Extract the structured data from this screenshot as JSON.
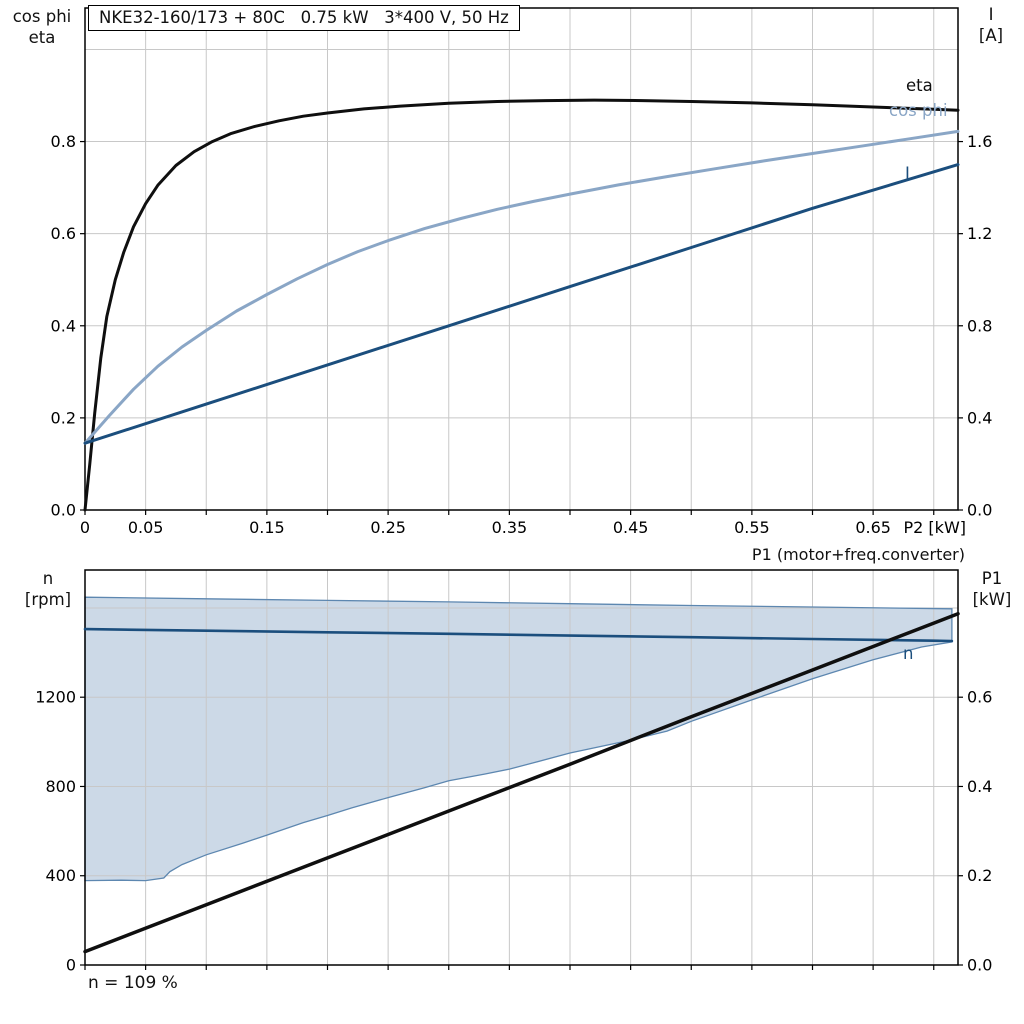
{
  "colors": {
    "black_curve": "#0f0f0f",
    "cos_phi": "#8aa6c6",
    "dark_blue": "#1b4e7d",
    "band_fill": "#ccd9e7",
    "band_edge": "#5d87b0",
    "grid": "#c8c8c8",
    "axis": "#000000"
  },
  "chart_data": [
    {
      "id": "top",
      "type": "line",
      "title": "NKE32-160/173 + 80C   0.75 kW   3*400 V, 50 Hz",
      "x_axis": {
        "label": "P2 [kW]",
        "min": 0,
        "max": 0.72,
        "grid_step": 0.05,
        "tick_values": [
          0,
          0.05,
          0.15,
          0.25,
          0.35,
          0.45,
          0.55,
          0.65
        ],
        "tick_labels": [
          "0",
          "0.05",
          "0.15",
          "0.25",
          "0.35",
          "0.45",
          "0.55",
          "0.65"
        ]
      },
      "y_left": {
        "title_line1": "cos phi",
        "title_line2": "eta",
        "min": 0,
        "max": 1.09,
        "ticks": [
          0,
          0.2,
          0.4,
          0.6,
          0.8
        ],
        "tick_labels": [
          "0.0",
          "0.2",
          "0.4",
          "0.6",
          "0.8"
        ],
        "grid": [
          0.2,
          0.4,
          0.6,
          0.8,
          1.0
        ]
      },
      "y_right": {
        "title_line1": "I",
        "title_line2": "[A]",
        "min": 0,
        "max": 2.18,
        "ticks": [
          0,
          0.4,
          0.8,
          1.2,
          1.6
        ],
        "tick_labels": [
          "0.0",
          "0.4",
          "0.8",
          "1.2",
          "1.6"
        ]
      },
      "series": [
        {
          "name": "eta",
          "label": "eta",
          "axis": "left",
          "color": "#0f0f0f",
          "points": [
            [
              0,
              0
            ],
            [
              0.004,
              0.1
            ],
            [
              0.008,
              0.21
            ],
            [
              0.013,
              0.33
            ],
            [
              0.018,
              0.42
            ],
            [
              0.025,
              0.5
            ],
            [
              0.032,
              0.56
            ],
            [
              0.04,
              0.615
            ],
            [
              0.05,
              0.665
            ],
            [
              0.06,
              0.705
            ],
            [
              0.075,
              0.748
            ],
            [
              0.09,
              0.778
            ],
            [
              0.105,
              0.8
            ],
            [
              0.12,
              0.817
            ],
            [
              0.14,
              0.833
            ],
            [
              0.16,
              0.845
            ],
            [
              0.18,
              0.855
            ],
            [
              0.2,
              0.862
            ],
            [
              0.23,
              0.871
            ],
            [
              0.26,
              0.877
            ],
            [
              0.3,
              0.883
            ],
            [
              0.34,
              0.887
            ],
            [
              0.38,
              0.889
            ],
            [
              0.42,
              0.89
            ],
            [
              0.46,
              0.889
            ],
            [
              0.5,
              0.887
            ],
            [
              0.55,
              0.884
            ],
            [
              0.6,
              0.88
            ],
            [
              0.65,
              0.875
            ],
            [
              0.7,
              0.87
            ],
            [
              0.72,
              0.868
            ]
          ]
        },
        {
          "name": "cos phi",
          "label": "cos phi",
          "axis": "left",
          "color": "#8aa6c6",
          "points": [
            [
              0,
              0.145
            ],
            [
              0.02,
              0.205
            ],
            [
              0.04,
              0.262
            ],
            [
              0.06,
              0.312
            ],
            [
              0.08,
              0.354
            ],
            [
              0.1,
              0.39
            ],
            [
              0.125,
              0.432
            ],
            [
              0.15,
              0.468
            ],
            [
              0.175,
              0.502
            ],
            [
              0.2,
              0.533
            ],
            [
              0.225,
              0.561
            ],
            [
              0.25,
              0.585
            ],
            [
              0.28,
              0.611
            ],
            [
              0.31,
              0.633
            ],
            [
              0.34,
              0.653
            ],
            [
              0.37,
              0.67
            ],
            [
              0.4,
              0.686
            ],
            [
              0.44,
              0.706
            ],
            [
              0.48,
              0.724
            ],
            [
              0.52,
              0.741
            ],
            [
              0.56,
              0.758
            ],
            [
              0.6,
              0.774
            ],
            [
              0.64,
              0.79
            ],
            [
              0.68,
              0.806
            ],
            [
              0.72,
              0.822
            ]
          ]
        },
        {
          "name": "I",
          "label": "I",
          "axis": "right",
          "color": "#1b4e7d",
          "points": [
            [
              0,
              0.29
            ],
            [
              0.1,
              0.46
            ],
            [
              0.2,
              0.63
            ],
            [
              0.3,
              0.8
            ],
            [
              0.4,
              0.97
            ],
            [
              0.5,
              1.14
            ],
            [
              0.6,
              1.31
            ],
            [
              0.72,
              1.5
            ]
          ]
        }
      ]
    },
    {
      "id": "bottom",
      "type": "line",
      "corner_label": "P1 (motor+freq.converter)",
      "annotation": "n = 109 %",
      "x_axis": {
        "label": "",
        "min": 0,
        "max": 0.72,
        "grid_step": 0.05,
        "tick_values": [],
        "tick_labels": []
      },
      "y_left": {
        "title_line1": "n",
        "title_line2": "[rpm]",
        "min": 0,
        "max": 1770,
        "ticks": [
          0,
          400,
          800,
          1200
        ],
        "tick_labels": [
          "0",
          "400",
          "800",
          "1200"
        ],
        "grid": [
          400,
          800,
          1200,
          1600
        ]
      },
      "y_right": {
        "title_line1": "P1",
        "title_line2": "[kW]",
        "min": 0,
        "max": 0.885,
        "ticks": [
          0,
          0.2,
          0.4,
          0.6
        ],
        "tick_labels": [
          "0.0",
          "0.2",
          "0.4",
          "0.6"
        ]
      },
      "band": {
        "name": "speed-range",
        "points": [
          [
            0,
            1648
          ],
          [
            0.1,
            1641
          ],
          [
            0.2,
            1634
          ],
          [
            0.3,
            1627
          ],
          [
            0.4,
            1619
          ],
          [
            0.5,
            1611
          ],
          [
            0.6,
            1604
          ],
          [
            0.715,
            1596
          ],
          [
            0.715,
            1448
          ],
          [
            0.69,
            1425
          ],
          [
            0.65,
            1368
          ],
          [
            0.6,
            1283
          ],
          [
            0.55,
            1188
          ],
          [
            0.5,
            1092
          ],
          [
            0.48,
            1048
          ],
          [
            0.45,
            1008
          ],
          [
            0.4,
            950
          ],
          [
            0.37,
            906
          ],
          [
            0.35,
            878
          ],
          [
            0.33,
            856
          ],
          [
            0.3,
            826
          ],
          [
            0.28,
            794
          ],
          [
            0.25,
            750
          ],
          [
            0.22,
            704
          ],
          [
            0.2,
            670
          ],
          [
            0.18,
            638
          ],
          [
            0.15,
            582
          ],
          [
            0.13,
            546
          ],
          [
            0.1,
            494
          ],
          [
            0.08,
            450
          ],
          [
            0.07,
            418
          ],
          [
            0.065,
            390
          ],
          [
            0.05,
            378
          ],
          [
            0.03,
            380
          ],
          [
            0,
            378
          ]
        ]
      },
      "series": [
        {
          "name": "n",
          "label": "n",
          "axis": "left",
          "color": "#1b4e7d",
          "points": [
            [
              0,
              1505
            ],
            [
              0.1,
              1498
            ],
            [
              0.2,
              1491
            ],
            [
              0.3,
              1484
            ],
            [
              0.4,
              1476
            ],
            [
              0.5,
              1469
            ],
            [
              0.6,
              1461
            ],
            [
              0.7,
              1453
            ],
            [
              0.715,
              1452
            ]
          ]
        },
        {
          "name": "P1",
          "label": "P1",
          "axis": "right",
          "color": "#0f0f0f",
          "points": [
            [
              0,
              0.03
            ],
            [
              0.1,
              0.135
            ],
            [
              0.2,
              0.24
            ],
            [
              0.3,
              0.345
            ],
            [
              0.4,
              0.45
            ],
            [
              0.5,
              0.556
            ],
            [
              0.6,
              0.661
            ],
            [
              0.7,
              0.766
            ],
            [
              0.72,
              0.787
            ]
          ]
        }
      ]
    }
  ]
}
